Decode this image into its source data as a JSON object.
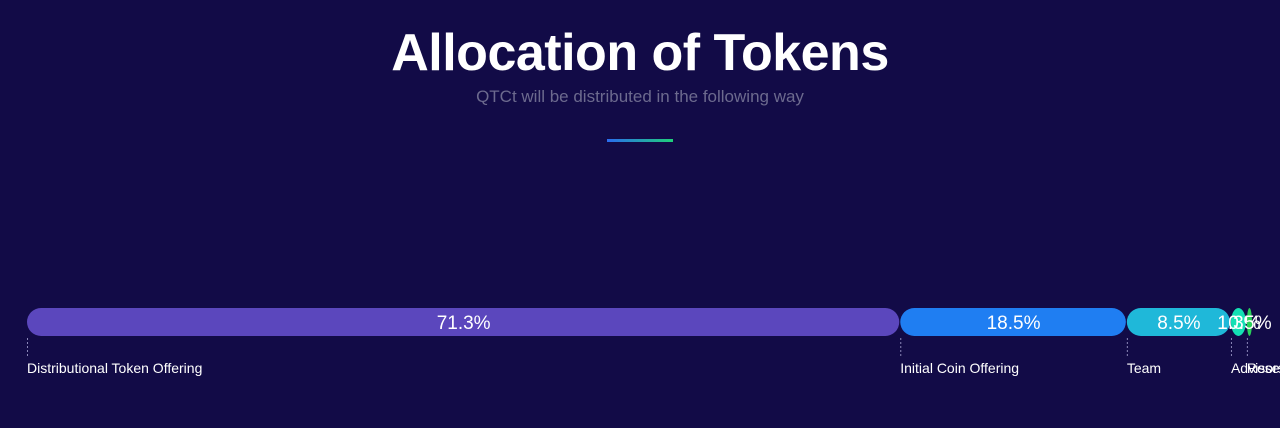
{
  "header": {
    "title": "Allocation of Tokens",
    "subtitle": "QTCt will be distributed in the following way"
  },
  "chart_data": {
    "type": "bar",
    "orientation": "horizontal-stacked",
    "categories": [
      "Distributional Token Offering",
      "Initial Coin Offering",
      "Team",
      "Advisors",
      "Reserve"
    ],
    "values": [
      71.3,
      18.5,
      8.5,
      1.3,
      0.5
    ],
    "value_labels": [
      "71.3%",
      "18.5%",
      "8.5%",
      "1.3%",
      "0.5%"
    ],
    "colors": [
      "#5b47bd",
      "#1f7ef2",
      "#1fb8d9",
      "#14e0b4",
      "#28d15a"
    ],
    "unit": "%",
    "title": "Allocation of Tokens",
    "subtitle": "QTCt will be distributed in the following way",
    "legend": "below"
  },
  "colors": {
    "background": "#120b47",
    "title": "#ffffff",
    "subtitle": "#6c6a8e",
    "divider_start": "#2a6cf0",
    "divider_end": "#1fd07a"
  }
}
